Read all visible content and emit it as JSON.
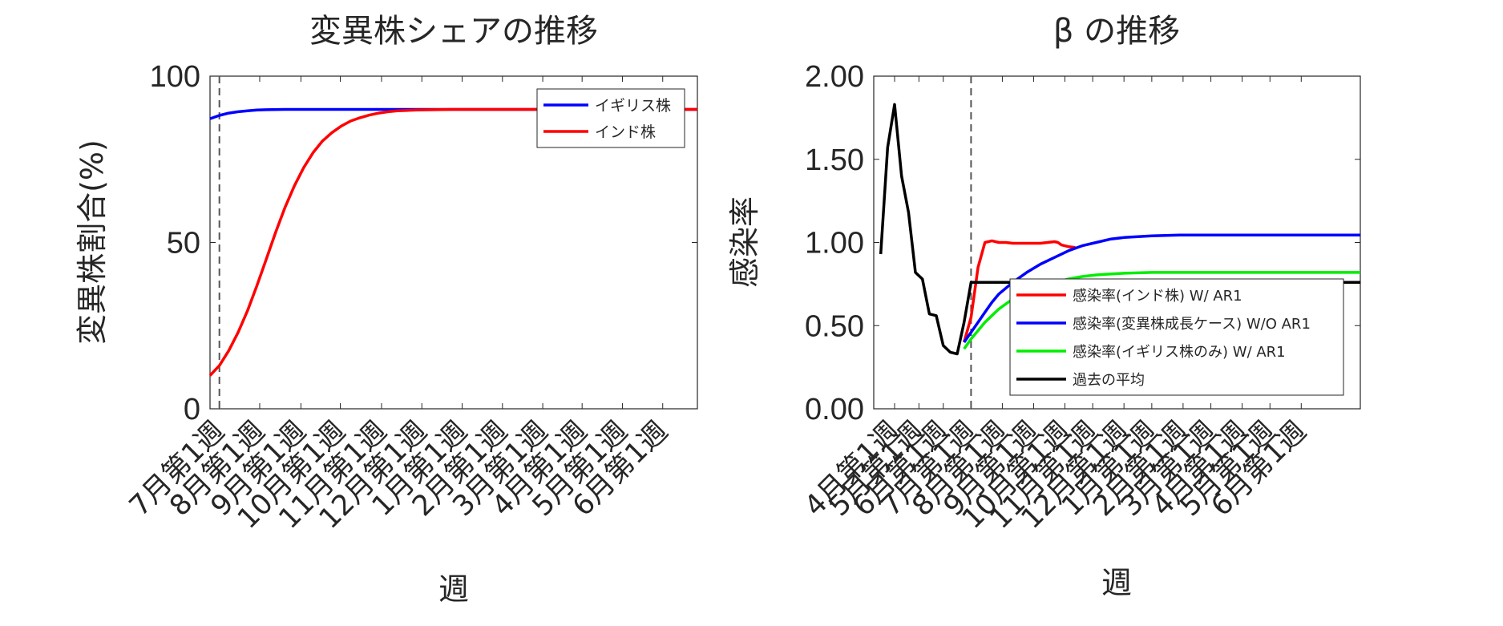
{
  "chart_data": [
    {
      "type": "line",
      "title": "変異株シェアの推移",
      "xlabel": "週",
      "ylabel": "変異株割合(%)",
      "ylim": [
        0,
        100
      ],
      "yticks": [
        "0",
        "50",
        "100"
      ],
      "ytick_values": [
        0,
        50,
        100
      ],
      "xlim": [
        0,
        52
      ],
      "xticks": [
        "7月第1週",
        "8月第1週",
        "9月第1週",
        "10月第1週",
        "11月第1週",
        "12月第1週",
        "1月第1週",
        "2月第1週",
        "3月第1週",
        "4月第1週",
        "5月第1週",
        "6月第1週"
      ],
      "xtick_values": [
        1,
        5.3,
        9.7,
        13.9,
        18.3,
        22.6,
        26.9,
        31.2,
        35.5,
        39.7,
        44,
        48.3
      ],
      "vline_x": 1,
      "legend_position": "top-right",
      "series": [
        {
          "name": "イギリス株",
          "color": "#0000ff",
          "x": [
            0,
            1,
            2,
            3,
            4,
            5,
            6,
            8,
            10,
            15,
            20,
            30,
            40,
            52
          ],
          "y": [
            87.2,
            88.2,
            88.9,
            89.3,
            89.6,
            89.8,
            89.9,
            90,
            90,
            90,
            90,
            90,
            90,
            90
          ]
        },
        {
          "name": "インド株",
          "color": "#ff0000",
          "x": [
            0,
            1,
            2,
            3,
            4,
            5,
            6,
            7,
            8,
            9,
            10,
            11,
            12,
            13,
            14,
            15,
            16,
            17,
            18,
            19,
            20,
            22,
            24,
            26,
            28,
            30,
            35,
            40,
            45,
            52
          ],
          "y": [
            10,
            13,
            17.5,
            23,
            29.5,
            37,
            45,
            53,
            60.5,
            67,
            72.5,
            77,
            80.5,
            83,
            85,
            86.5,
            87.5,
            88.3,
            88.9,
            89.3,
            89.6,
            89.8,
            89.9,
            90,
            90,
            90,
            90,
            90,
            90,
            90
          ]
        }
      ]
    },
    {
      "type": "line",
      "title": "β の推移",
      "xlabel": "週",
      "ylabel": "感染率",
      "ylim": [
        0,
        2
      ],
      "yticks": [
        "0.00",
        "0.50",
        "1.00",
        "1.50",
        "2.00"
      ],
      "ytick_values": [
        0,
        0.5,
        1,
        1.5,
        2
      ],
      "xlim": [
        0,
        70
      ],
      "xticks": [
        "4月第1週",
        "5月第1週",
        "6月第1週",
        "7月第1週",
        "8月第1週",
        "9月第1週",
        "10月第1週",
        "11月第1週",
        "12月第1週",
        "1月第1週",
        "2月第1週",
        "3月第1週",
        "4月第1週",
        "5月第1週",
        "6月第1週"
      ],
      "xtick_values": [
        3,
        6.5,
        10,
        14,
        18.5,
        23,
        27.5,
        31.5,
        36,
        40,
        44.5,
        48.5,
        53,
        57,
        61.5
      ],
      "vline_x": 14,
      "legend_position": "bottom-right",
      "series": [
        {
          "name": "感染率(インド株) W/ AR1",
          "color": "#ff0000",
          "x": [
            13,
            14,
            15,
            16,
            17,
            18,
            19,
            20,
            21,
            22,
            23,
            24,
            25,
            26,
            26.5,
            27,
            28,
            29
          ],
          "y": [
            0.4,
            0.55,
            0.85,
            1.0,
            1.01,
            1.0,
            1.0,
            0.995,
            0.995,
            0.995,
            0.995,
            0.995,
            1.0,
            1.005,
            1.0,
            0.985,
            0.975,
            0.97
          ]
        },
        {
          "name": "感染率(変異株成長ケース) W/O AR1",
          "color": "#0000ff",
          "x": [
            13,
            14,
            15,
            16,
            17,
            18,
            20,
            22,
            24,
            26,
            28,
            30,
            32,
            34,
            36,
            38,
            40,
            44,
            50,
            56,
            62,
            70
          ],
          "y": [
            0.4,
            0.46,
            0.52,
            0.58,
            0.64,
            0.69,
            0.76,
            0.82,
            0.87,
            0.91,
            0.95,
            0.98,
            1.0,
            1.02,
            1.03,
            1.035,
            1.04,
            1.045,
            1.045,
            1.045,
            1.045,
            1.045
          ]
        },
        {
          "name": "感染率(イギリス株のみ) W/ AR1",
          "color": "#00ee00",
          "x": [
            13,
            14,
            15,
            16,
            17,
            18,
            20,
            22,
            24,
            26,
            28,
            30,
            32,
            34,
            36,
            40,
            50,
            60,
            70
          ],
          "y": [
            0.36,
            0.42,
            0.47,
            0.52,
            0.56,
            0.6,
            0.66,
            0.7,
            0.74,
            0.76,
            0.78,
            0.795,
            0.805,
            0.81,
            0.815,
            0.82,
            0.82,
            0.82,
            0.82
          ]
        },
        {
          "name": "過去の平均",
          "color": "#000000",
          "x": [
            1,
            2,
            3,
            4,
            5,
            6,
            7,
            8,
            9,
            10,
            11,
            12,
            13,
            14,
            15,
            16,
            18,
            20,
            25,
            30,
            40,
            50,
            60,
            70
          ],
          "y": [
            0.93,
            1.57,
            1.83,
            1.4,
            1.18,
            0.82,
            0.78,
            0.57,
            0.56,
            0.38,
            0.34,
            0.33,
            0.52,
            0.76,
            0.76,
            0.76,
            0.76,
            0.76,
            0.76,
            0.76,
            0.76,
            0.76,
            0.76,
            0.76
          ]
        }
      ]
    }
  ]
}
